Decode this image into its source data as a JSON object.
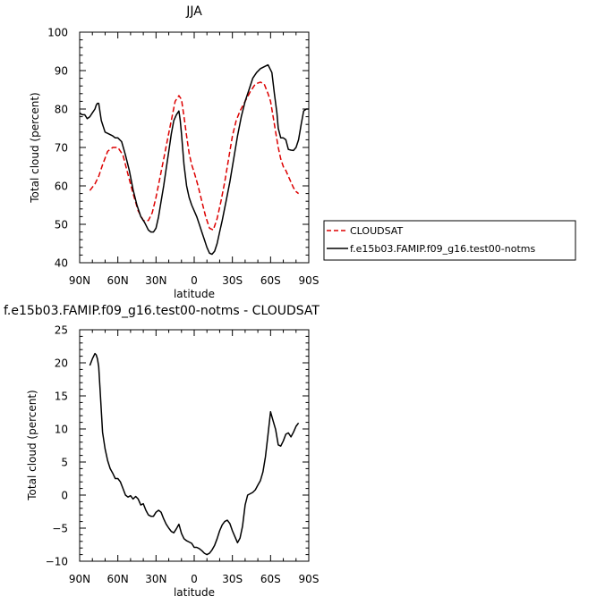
{
  "chart_data": [
    {
      "type": "line",
      "title": "JJA",
      "xlabel": "latitude",
      "ylabel": "Total cloud (percent)",
      "xlim": [
        90,
        -90
      ],
      "ylim": [
        40,
        100
      ],
      "x_ticks": [
        90,
        60,
        30,
        0,
        -30,
        -60,
        -90
      ],
      "x_tick_labels": [
        "90N",
        "60N",
        "30N",
        "0",
        "30S",
        "60S",
        "90S"
      ],
      "y_ticks": [
        40,
        50,
        60,
        70,
        80,
        90,
        100
      ],
      "y_tick_labels": [
        "40",
        "50",
        "60",
        "70",
        "80",
        "90",
        "100"
      ],
      "legend_position": "right",
      "series": [
        {
          "name": "CLOUDSAT",
          "color": "#dd0000",
          "style": "dashed",
          "x": [
            82,
            78,
            75,
            72,
            68,
            64,
            60,
            56,
            52,
            48,
            44,
            40,
            36,
            33,
            30,
            27,
            24,
            21,
            18,
            15,
            12,
            10,
            8,
            6,
            4,
            2,
            0,
            -3,
            -6,
            -9,
            -12,
            -15,
            -18,
            -21,
            -24,
            -27,
            -30,
            -33,
            -36,
            -40,
            -44,
            -48,
            -52,
            -55,
            -58,
            -60,
            -62,
            -64,
            -66,
            -68,
            -70,
            -72,
            -74,
            -76,
            -78,
            -80,
            -82
          ],
          "y": [
            58.8,
            60.5,
            62.5,
            65.5,
            69,
            70,
            70,
            68,
            63,
            58,
            53.5,
            51,
            51,
            53,
            57,
            62,
            67,
            72,
            77,
            82,
            83.5,
            82.5,
            78,
            73,
            68.5,
            65.5,
            63.5,
            60,
            56,
            52,
            49,
            48.5,
            51.5,
            56,
            61,
            67,
            73,
            77,
            79.5,
            82,
            84.5,
            86.5,
            87,
            86.5,
            84,
            82,
            78,
            74,
            70,
            67,
            65,
            64,
            62.5,
            61,
            59.5,
            58.5,
            58
          ]
        },
        {
          "name": "f.e15b03.FAMIP.f09_g16.test00-notms",
          "color": "#000000",
          "style": "solid",
          "x": [
            90,
            88,
            86,
            84,
            82,
            80,
            78,
            77,
            76,
            75,
            73,
            70,
            67,
            64,
            62,
            60,
            57,
            54,
            51,
            48,
            45,
            42,
            39,
            36,
            34,
            32,
            30,
            28,
            26,
            24,
            22,
            20,
            18,
            16,
            14,
            12,
            11,
            10,
            9,
            8,
            6,
            4,
            2,
            0,
            -2,
            -4,
            -6,
            -8,
            -10,
            -12,
            -14,
            -16,
            -18,
            -20,
            -22,
            -25,
            -28,
            -31,
            -34,
            -37,
            -40,
            -43,
            -46,
            -49,
            -52,
            -55,
            -58,
            -61,
            -63,
            -65,
            -66,
            -68,
            -70,
            -72,
            -74,
            -76,
            -78,
            -80,
            -82,
            -84,
            -86,
            -88,
            -90
          ],
          "y": [
            79,
            78.5,
            78.5,
            77.5,
            78,
            79,
            80,
            81,
            81.5,
            81.5,
            77,
            74,
            73.5,
            73,
            72.5,
            72.5,
            71.5,
            68,
            64,
            59,
            55,
            52,
            50.5,
            48.5,
            48,
            48,
            49,
            52,
            56,
            60,
            64.5,
            69,
            73.5,
            77,
            78.5,
            79.5,
            77,
            73.5,
            69.5,
            65.5,
            60,
            57,
            55,
            53.5,
            52,
            50,
            48,
            46,
            44,
            42.5,
            42.2,
            43,
            45,
            48,
            51,
            56,
            61,
            67,
            73,
            78,
            82,
            85,
            88,
            89.5,
            90.5,
            91,
            91.5,
            89.5,
            84,
            79,
            75,
            72.5,
            72.5,
            72,
            69.5,
            69.3,
            69.2,
            70,
            72,
            76,
            79.5,
            80,
            80
          ]
        }
      ]
    },
    {
      "type": "line",
      "title": "f.e15b03.FAMIP.f09_g16.test00-notms - CLOUDSAT",
      "xlabel": "latitude",
      "ylabel": "Total cloud (percent)",
      "xlim": [
        90,
        -90
      ],
      "ylim": [
        -10,
        25
      ],
      "x_ticks": [
        90,
        60,
        30,
        0,
        -30,
        -60,
        -90
      ],
      "x_tick_labels": [
        "90N",
        "60N",
        "30N",
        "0",
        "30S",
        "60S",
        "90S"
      ],
      "y_ticks": [
        -10,
        -5,
        0,
        5,
        10,
        15,
        20,
        25
      ],
      "y_tick_labels": [
        "−10",
        "−5",
        "0",
        "5",
        "10",
        "15",
        "20",
        "25"
      ],
      "series": [
        {
          "color": "#000000",
          "style": "solid",
          "x": [
            82,
            80,
            78,
            77,
            76,
            75,
            74,
            72,
            70,
            68,
            66,
            64,
            62,
            60,
            58,
            56,
            54,
            52,
            50,
            48,
            46,
            44,
            42,
            40,
            38,
            36,
            34,
            32,
            30,
            28,
            26,
            24,
            22,
            20,
            18,
            16,
            14,
            12,
            10,
            8,
            6,
            4,
            2,
            0,
            -2,
            -4,
            -6,
            -8,
            -10,
            -12,
            -14,
            -16,
            -18,
            -20,
            -22,
            -24,
            -26,
            -28,
            -30,
            -32,
            -34,
            -36,
            -38,
            -40,
            -42,
            -44,
            -46,
            -48,
            -50,
            -52,
            -54,
            -56,
            -58,
            -60,
            -62,
            -64,
            -66,
            -68,
            -70,
            -72,
            -74,
            -76,
            -78,
            -80,
            -82
          ],
          "y": [
            19.6,
            20.6,
            21.4,
            21.2,
            20.6,
            19.4,
            16,
            9.5,
            7,
            5.2,
            4,
            3.3,
            2.5,
            2.5,
            2,
            1,
            0,
            -0.3,
            -0.1,
            -0.6,
            -0.2,
            -0.6,
            -1.5,
            -1.3,
            -2.3,
            -3,
            -3.2,
            -3.2,
            -2.6,
            -2.3,
            -2.6,
            -3.6,
            -4.4,
            -5,
            -5.5,
            -5.7,
            -5.1,
            -4.4,
            -5.8,
            -6.6,
            -6.9,
            -7.1,
            -7.3,
            -7.9,
            -7.9,
            -8.1,
            -8.4,
            -8.8,
            -9.0,
            -8.8,
            -8.3,
            -7.6,
            -6.6,
            -5.4,
            -4.5,
            -4.0,
            -3.8,
            -4.3,
            -5.4,
            -6.3,
            -7.2,
            -6.5,
            -4.7,
            -1.5,
            0,
            0.2,
            0.4,
            0.8,
            1.5,
            2.2,
            3.5,
            5.8,
            9.2,
            12.6,
            11.2,
            9.9,
            7.6,
            7.4,
            8.2,
            9.2,
            9.4,
            8.8,
            9.5,
            10.4,
            10.9
          ]
        }
      ]
    }
  ]
}
